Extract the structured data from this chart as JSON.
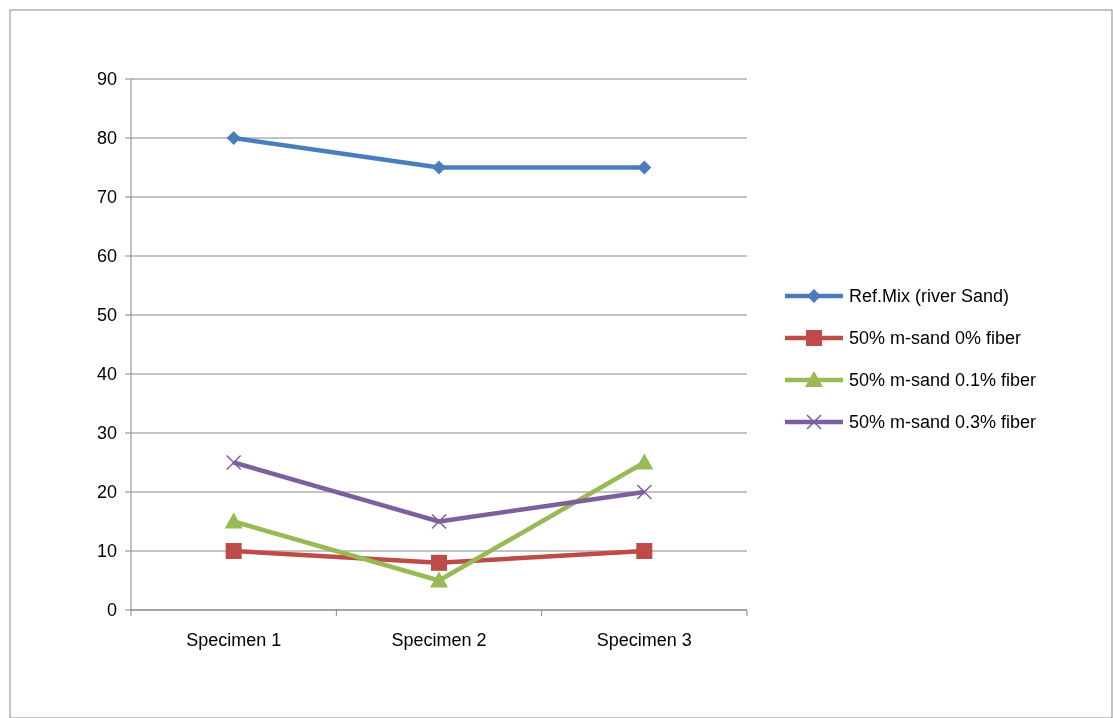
{
  "chart_data": {
    "type": "line",
    "categories": [
      "Specimen 1",
      "Specimen 2",
      "Specimen 3"
    ],
    "series": [
      {
        "name": "Ref.Mix (river Sand)",
        "color": "#4a7ebb",
        "values": [
          80,
          75,
          75
        ],
        "marker": "diamond"
      },
      {
        "name": "50% m-sand 0% fiber",
        "color": "#be4b48",
        "values": [
          10,
          8,
          10
        ],
        "marker": "square"
      },
      {
        "name": "50% m-sand 0.1% fiber",
        "color": "#98b954",
        "values": [
          15,
          5,
          25
        ],
        "marker": "triangle"
      },
      {
        "name": "50% m-sand 0.3% fiber",
        "color": "#7d5fa0",
        "values": [
          25,
          15,
          20
        ],
        "marker": "cross"
      }
    ],
    "ylim": [
      0,
      90
    ],
    "yticks": [
      0,
      10,
      20,
      30,
      40,
      50,
      60,
      70,
      80,
      90
    ],
    "grid": "y",
    "legend": "right"
  }
}
